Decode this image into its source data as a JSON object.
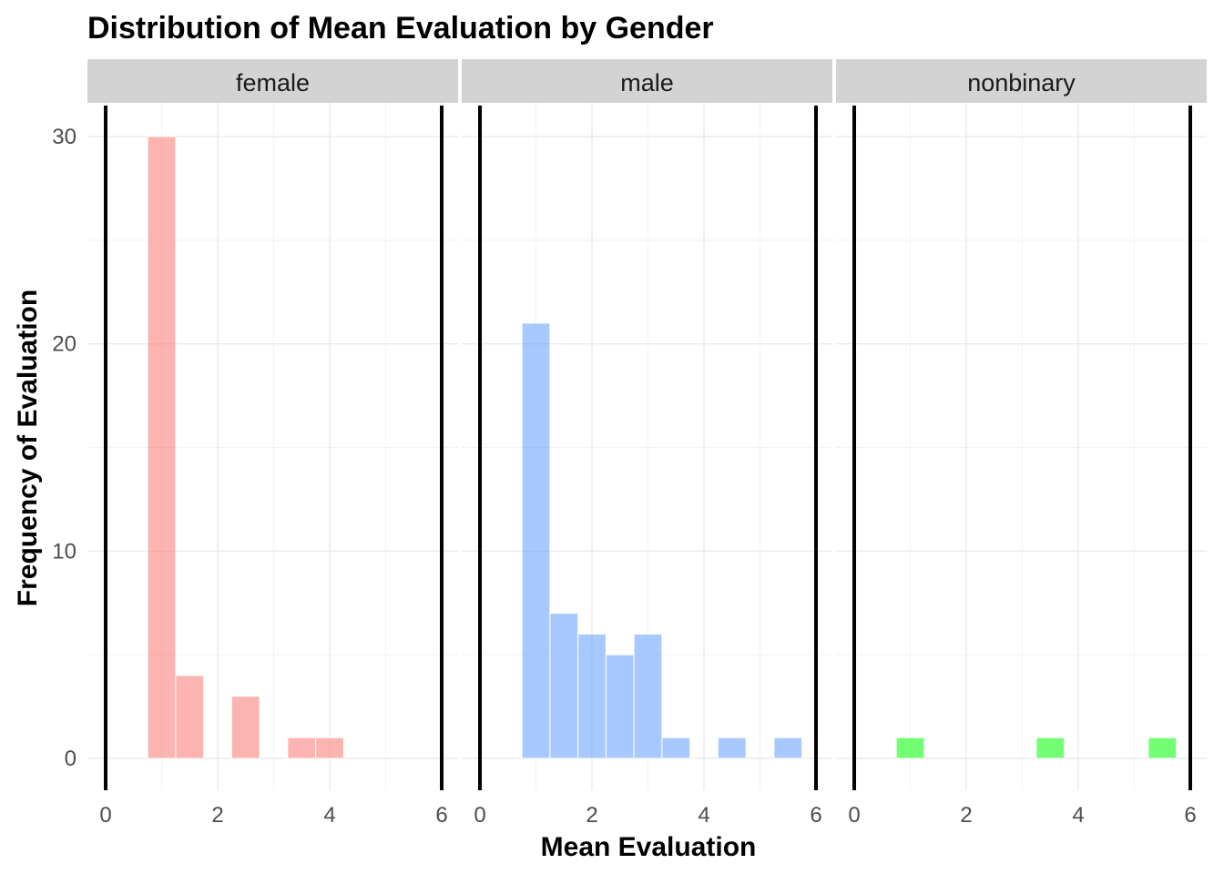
{
  "chart_data": {
    "type": "bar",
    "title": "Distribution of Mean Evaluation by Gender",
    "xlabel": "Mean Evaluation",
    "ylabel": "Frequency of Evaluation",
    "xlim": [
      0,
      6
    ],
    "ylim": [
      0,
      30
    ],
    "x_ticks": [
      "0",
      "2",
      "4",
      "6"
    ],
    "y_ticks": [
      "0",
      "10",
      "20",
      "30"
    ],
    "bin_width": 0.5,
    "reference_lines_x": [
      0,
      6
    ],
    "grid": true,
    "panels": [
      {
        "facet": "female",
        "color": "#F8766D",
        "bins": [
          {
            "x": 1.0,
            "count": 30
          },
          {
            "x": 1.5,
            "count": 4
          },
          {
            "x": 2.5,
            "count": 3
          },
          {
            "x": 3.5,
            "count": 1
          },
          {
            "x": 4.0,
            "count": 1
          }
        ]
      },
      {
        "facet": "male",
        "color": "#619CFF",
        "bins": [
          {
            "x": 1.0,
            "count": 21
          },
          {
            "x": 1.5,
            "count": 7
          },
          {
            "x": 2.0,
            "count": 6
          },
          {
            "x": 2.5,
            "count": 5
          },
          {
            "x": 3.0,
            "count": 6
          },
          {
            "x": 3.5,
            "count": 1
          },
          {
            "x": 4.5,
            "count": 1
          },
          {
            "x": 5.5,
            "count": 1
          }
        ]
      },
      {
        "facet": "nonbinary",
        "color": "#00FF00",
        "bins": [
          {
            "x": 1.0,
            "count": 1
          },
          {
            "x": 3.5,
            "count": 1
          },
          {
            "x": 5.5,
            "count": 1
          }
        ]
      }
    ]
  }
}
